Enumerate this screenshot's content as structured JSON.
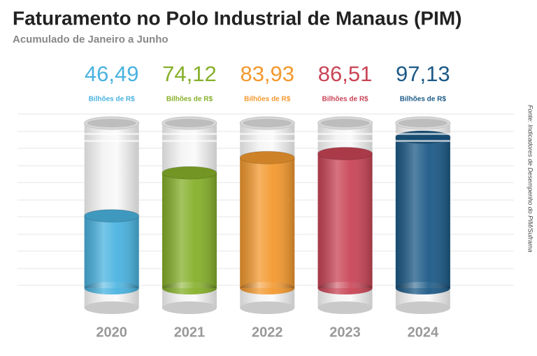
{
  "chart_data": {
    "type": "bar",
    "title": "Faturamento no Polo Industrial de Manaus (PIM)",
    "subtitle": "Acumulado de Janeiro a Junho",
    "source": "Fonte: Indicadores de Desempenho do PIM/Suframa",
    "unit_label": "Bilhões de R$",
    "categories": [
      "2020",
      "2021",
      "2022",
      "2023",
      "2024"
    ],
    "values": [
      46.49,
      74.12,
      83.93,
      86.51,
      97.13
    ],
    "value_labels": [
      "46,49",
      "74,12",
      "83,93",
      "86,51",
      "97,13"
    ],
    "colors": [
      "#4ab3e0",
      "#86b02a",
      "#f3992f",
      "#c94556",
      "#1c5a87"
    ]
  }
}
